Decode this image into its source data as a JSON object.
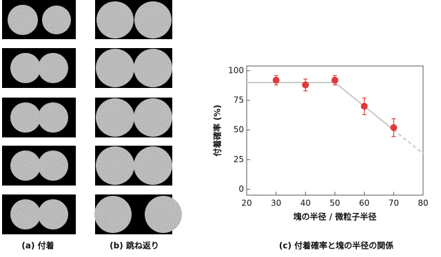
{
  "panels": {
    "a_label": "(a) 付着",
    "b_label": "(b) 跳ね返り"
  },
  "chart_data": {
    "type": "scatter",
    "caption": "(c) 付着確率と塊の半径の関係",
    "xlabel": "塊の半径 / 微粒子半径",
    "ylabel": "付着確率 (%)",
    "x": [
      30,
      40,
      50,
      60,
      70
    ],
    "series": [
      {
        "color": "#e03a3a",
        "values": [
          92,
          88,
          92,
          70,
          52
        ],
        "errors": [
          4,
          5,
          4,
          7,
          7.5
        ]
      }
    ],
    "fit": {
      "color": "#c8c8c8",
      "x": [
        20,
        50,
        70
      ],
      "y": [
        90,
        90,
        50
      ]
    },
    "fit_extrapolated": {
      "color": "#c8c8c8",
      "x": [
        70,
        80
      ],
      "y": [
        50,
        30
      ]
    },
    "xlim": [
      20,
      80
    ],
    "xticks": [
      20,
      30,
      40,
      50,
      60,
      70,
      80
    ],
    "ylim": [
      -5,
      104
    ],
    "yticks": [
      0,
      25,
      50,
      75,
      100
    ]
  }
}
